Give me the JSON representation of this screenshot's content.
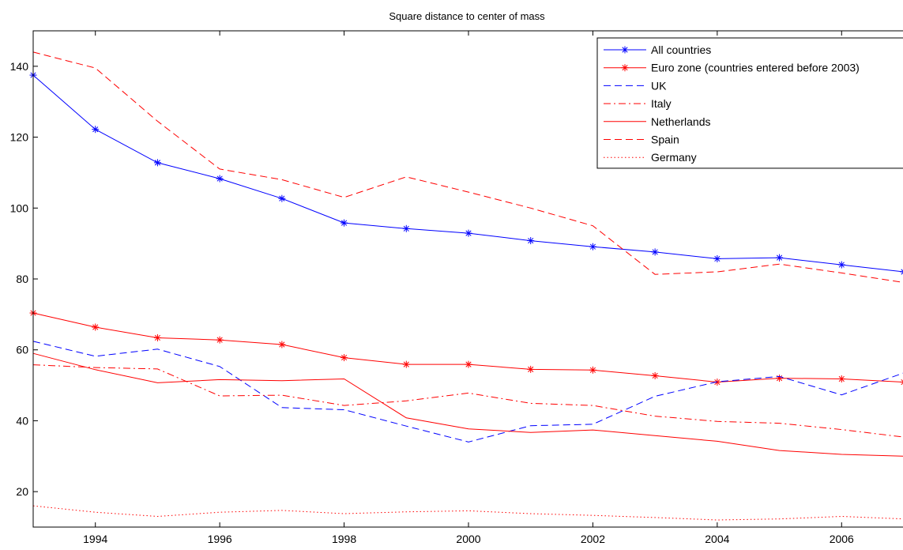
{
  "chart_data": {
    "type": "line",
    "title": "Square distance to center of mass",
    "xlabel": "",
    "ylabel": "",
    "xlim": [
      1993,
      2007
    ],
    "ylim": [
      10,
      150
    ],
    "xticks": [
      1994,
      1996,
      1998,
      2000,
      2002,
      2004,
      2006
    ],
    "yticks": [
      20,
      40,
      60,
      80,
      100,
      120,
      140
    ],
    "grid": false,
    "legend_position": "top-right",
    "x": [
      1993,
      1994,
      1995,
      1996,
      1997,
      1998,
      1999,
      2000,
      2001,
      2002,
      2003,
      2004,
      2005,
      2006,
      2007
    ],
    "series": [
      {
        "name": "All countries",
        "color": "#0000ff",
        "style": "solid",
        "marker": "star",
        "values": [
          137.5,
          122.2,
          112.8,
          108.3,
          102.7,
          95.8,
          94.2,
          92.9,
          90.8,
          89.1,
          87.6,
          85.7,
          86.0,
          84.0,
          82.0
        ]
      },
      {
        "name": "Euro zone (countries entered before 2003)",
        "color": "#ff0000",
        "style": "solid",
        "marker": "star",
        "values": [
          70.4,
          66.4,
          63.4,
          62.8,
          61.5,
          57.8,
          55.9,
          55.9,
          54.5,
          54.3,
          52.7,
          50.9,
          52.0,
          51.8,
          50.9
        ]
      },
      {
        "name": "UK",
        "color": "#0000ff",
        "style": "dashed",
        "marker": "none",
        "values": [
          62.4,
          58.2,
          60.2,
          55.3,
          43.7,
          43.1,
          38.5,
          34.0,
          38.6,
          39.0,
          46.9,
          51.0,
          52.5,
          47.3,
          53.5
        ]
      },
      {
        "name": "Italy",
        "color": "#ff0000",
        "style": "dashdot",
        "marker": "none",
        "values": [
          55.8,
          55.0,
          54.6,
          47.0,
          47.2,
          44.3,
          45.6,
          47.8,
          44.9,
          44.3,
          41.3,
          39.8,
          39.3,
          37.5,
          35.4
        ]
      },
      {
        "name": "Netherlands",
        "color": "#ff0000",
        "style": "solid",
        "marker": "none",
        "values": [
          59.0,
          54.4,
          50.7,
          51.6,
          51.3,
          51.8,
          40.8,
          37.7,
          36.7,
          37.4,
          35.8,
          34.2,
          31.6,
          30.5,
          30.0
        ]
      },
      {
        "name": "Spain",
        "color": "#ff0000",
        "style": "dashed",
        "marker": "none",
        "values": [
          144.0,
          139.5,
          124.5,
          111.0,
          108.0,
          103.0,
          108.8,
          104.5,
          100.0,
          95.0,
          81.3,
          82.0,
          84.2,
          81.7,
          79.0
        ]
      },
      {
        "name": "Germany",
        "color": "#ff0000",
        "style": "dotted",
        "marker": "none",
        "values": [
          16.0,
          14.2,
          13.0,
          14.2,
          14.7,
          13.8,
          14.3,
          14.6,
          13.8,
          13.3,
          12.7,
          12.0,
          12.3,
          13.0,
          12.3
        ]
      }
    ]
  }
}
